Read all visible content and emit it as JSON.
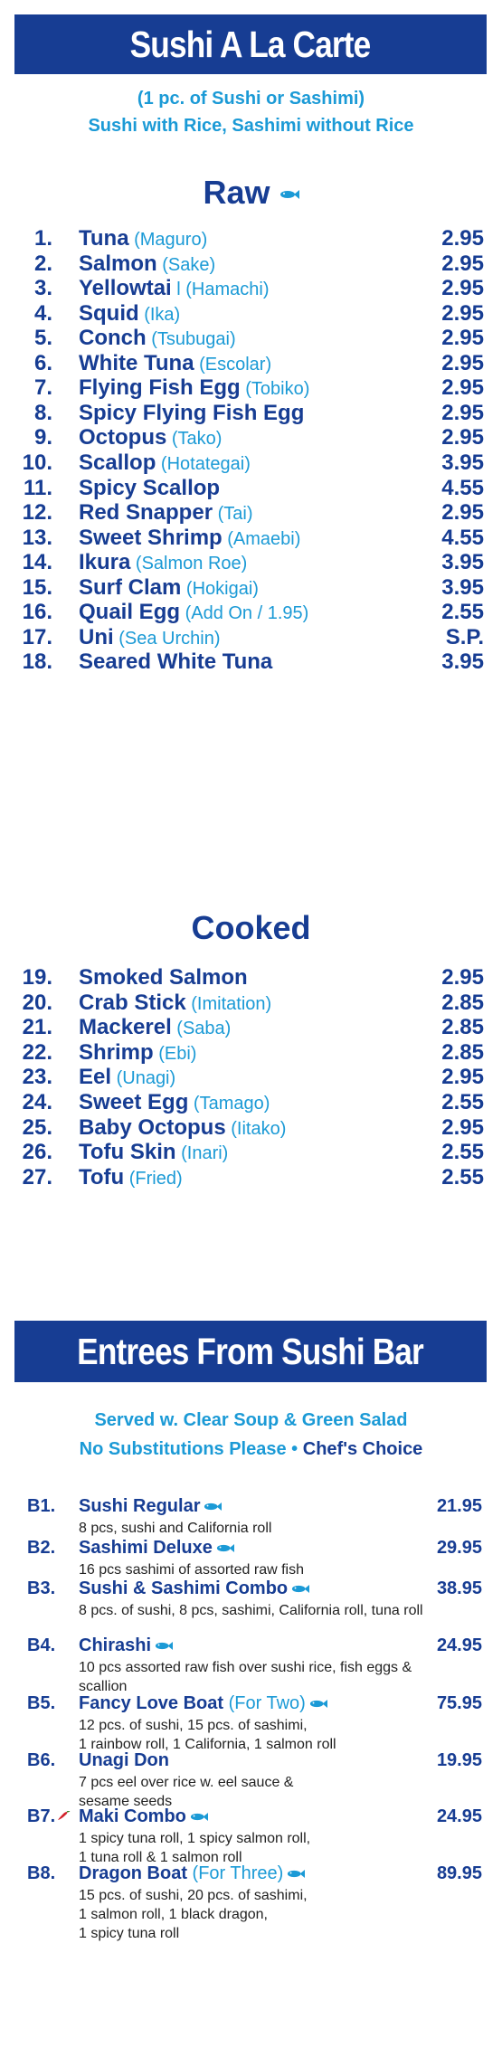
{
  "alacarte": {
    "title": "Sushi A La Carte",
    "sub1": "(1 pc. of Sushi or Sashimi)",
    "sub2": "Sushi with Rice, Sashimi without Rice"
  },
  "raw": {
    "title": "Raw",
    "items": [
      {
        "num": "1.",
        "name": "Tuna",
        "jp": "(Maguro)",
        "price": "2.95"
      },
      {
        "num": "2.",
        "name": "Salmon",
        "jp": "(Sake)",
        "price": "2.95"
      },
      {
        "num": "3.",
        "name": "Yellowtai",
        "jp": "l (Hamachi)",
        "price": "2.95"
      },
      {
        "num": "4.",
        "name": "Squid",
        "jp": "(Ika)",
        "price": "2.95"
      },
      {
        "num": "5.",
        "name": "Conch",
        "jp": "(Tsubugai)",
        "price": "2.95"
      },
      {
        "num": "6.",
        "name": "White Tuna",
        "jp": "(Escolar)",
        "price": "2.95"
      },
      {
        "num": "7.",
        "name": "Flying Fish Egg",
        "jp": "(Tobiko)",
        "price": "2.95"
      },
      {
        "num": "8.",
        "name": "Spicy Flying Fish Egg",
        "jp": "",
        "price": "2.95"
      },
      {
        "num": "9.",
        "name": "Octopus",
        "jp": "(Tako)",
        "price": "2.95"
      },
      {
        "num": "10.",
        "name": "Scallop",
        "jp": "(Hotategai)",
        "price": "3.95"
      },
      {
        "num": "11.",
        "name": "Spicy Scallop",
        "jp": "",
        "price": "4.55"
      },
      {
        "num": "12.",
        "name": "Red Snapper",
        "jp": "(Tai)",
        "price": "2.95"
      },
      {
        "num": "13.",
        "name": "Sweet Shrimp",
        "jp": "(Amaebi)",
        "price": "4.55"
      },
      {
        "num": "14.",
        "name": "Ikura",
        "jp": "(Salmon Roe)",
        "price": "3.95"
      },
      {
        "num": "15.",
        "name": "Surf Clam",
        "jp": "(Hokigai)",
        "price": "3.95"
      },
      {
        "num": "16.",
        "name": "Quail Egg",
        "jp": "(Add On / 1.95)",
        "price": "2.55"
      },
      {
        "num": "17.",
        "name": "Uni",
        "jp": "(Sea Urchin)",
        "price": "S.P."
      },
      {
        "num": "18.",
        "name": "Seared White Tuna",
        "jp": "",
        "price": "3.95"
      }
    ]
  },
  "cooked": {
    "title": "Cooked",
    "items": [
      {
        "num": "19.",
        "name": "Smoked Salmon",
        "jp": "",
        "price": "2.95"
      },
      {
        "num": "20.",
        "name": "Crab Stick",
        "jp": "(Imitation)",
        "price": "2.85"
      },
      {
        "num": "21.",
        "name": "Mackerel",
        "jp": "(Saba)",
        "price": "2.85"
      },
      {
        "num": "22.",
        "name": "Shrimp",
        "jp": "(Ebi)",
        "price": "2.85"
      },
      {
        "num": "23.",
        "name": "Eel",
        "jp": "(Unagi)",
        "price": "2.95"
      },
      {
        "num": "24.",
        "name": "Sweet Egg",
        "jp": "(Tamago)",
        "price": "2.55"
      },
      {
        "num": "25.",
        "name": "Baby Octopus",
        "jp": "(Iitako)",
        "price": "2.95"
      },
      {
        "num": "26.",
        "name": "Tofu Skin",
        "jp": "(Inari)",
        "price": "2.55"
      },
      {
        "num": "27.",
        "name": "Tofu",
        "jp": "(Fried)",
        "price": "2.55"
      }
    ]
  },
  "entrees": {
    "title": "Entrees From Sushi Bar",
    "sub1": "Served w. Clear Soup & Green Salad",
    "sub2": "No Substitutions Please",
    "sub2_bullet": "•",
    "sub2_choice": "Chef's Choice",
    "items": [
      {
        "num": "B1.",
        "name": "Sushi Regular",
        "extra": "",
        "fish": true,
        "pepper": false,
        "price": "21.95",
        "desc": "8 pcs, sushi and California roll"
      },
      {
        "num": "B2.",
        "name": "Sashimi Deluxe",
        "extra": "",
        "fish": true,
        "pepper": false,
        "price": "29.95",
        "desc": "16 pcs sashimi of assorted raw fish"
      },
      {
        "num": "B3.",
        "name": "Sushi & Sashimi Combo",
        "extra": "",
        "fish": true,
        "pepper": false,
        "price": "38.95",
        "desc": "8 pcs. of sushi, 8 pcs, sashimi, California roll, tuna roll"
      },
      {
        "num": "B4.",
        "name": "Chirashi",
        "extra": "",
        "fish": true,
        "pepper": false,
        "price": "24.95",
        "desc": "10 pcs assorted raw fish over sushi rice, fish eggs & scallion"
      },
      {
        "num": "B5.",
        "name": "Fancy Love Boat",
        "extra": "(For Two)",
        "fish": true,
        "pepper": false,
        "price": "75.95",
        "desc": "12 pcs. of sushi, 15 pcs. of sashimi,\n1 rainbow roll, 1 California, 1 salmon roll"
      },
      {
        "num": "B6.",
        "name": "Unagi Don",
        "extra": "",
        "fish": false,
        "pepper": false,
        "price": "19.95",
        "desc": "7 pcs eel over rice w. eel sauce &\nsesame seeds"
      },
      {
        "num": "B7.",
        "name": "Maki Combo",
        "extra": "",
        "fish": true,
        "pepper": true,
        "price": "24.95",
        "desc": "1 spicy tuna roll, 1 spicy salmon roll,\n1 tuna roll & 1 salmon roll"
      },
      {
        "num": "B8.",
        "name": "Dragon Boat",
        "extra": "(For Three)",
        "fish": true,
        "pepper": false,
        "price": "89.95",
        "desc": "15 pcs. of sushi, 20 pcs. of sashimi,\n1 salmon roll, 1 black dragon,\n1 spicy tuna roll"
      }
    ]
  },
  "colors": {
    "navy": "#173d93",
    "light": "#1b9ad6"
  },
  "icons": {
    "fish": "fish-icon",
    "pepper": "chili-pepper-icon"
  }
}
